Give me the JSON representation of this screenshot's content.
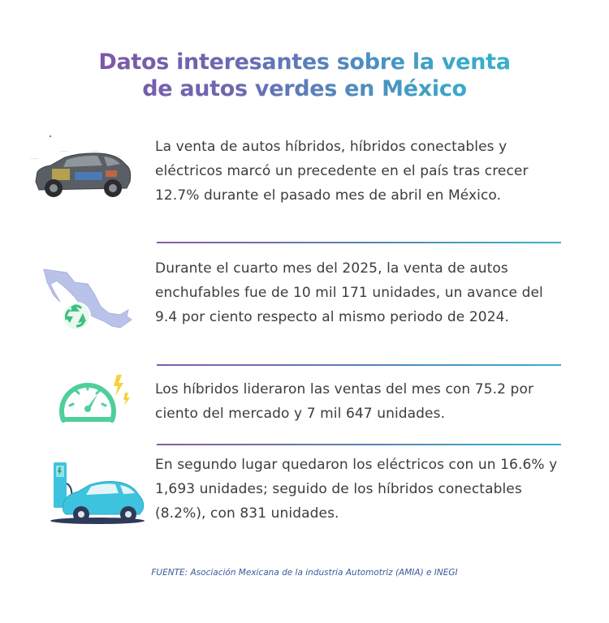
{
  "title": {
    "line1": "Datos interesantes sobre la venta",
    "line2": "de autos verdes en México"
  },
  "items": [
    {
      "icon": "hybrid-car-cutaway-icon",
      "text": "La venta de autos híbridos, híbridos conectables y eléctricos marcó un precedente en el país tras crecer 12.7% durante el pasado mes de abril en México."
    },
    {
      "icon": "mexico-map-recycle-icon",
      "text": "Durante el cuarto mes del 2025, la venta de autos enchufables fue de 10 mil 171 unidades, un avance del 9.4 por ciento respecto al mismo periodo de 2024."
    },
    {
      "icon": "speedometer-bolt-icon",
      "text": "Los híbridos lideraron las ventas del mes con 75.2 por ciento del mercado y 7 mil 647 unidades."
    },
    {
      "icon": "electric-car-charger-icon",
      "text": "En segundo lugar quedaron los eléctricos con un 16.6% y 1,693 unidades; seguido de los híbridos conectables (8.2%), con 831 unidades."
    }
  ],
  "source": "FUENTE: Asociación Mexicana de la industria Automotriz (AMIA) e INEGI",
  "colors": {
    "title_gradient_start": "#8a4a9e",
    "title_gradient_end": "#2cc0cc",
    "text": "#3c3c3c",
    "source": "#3a5a9a",
    "accent_green": "#4fcf9a",
    "accent_cyan": "#3ec3de"
  }
}
